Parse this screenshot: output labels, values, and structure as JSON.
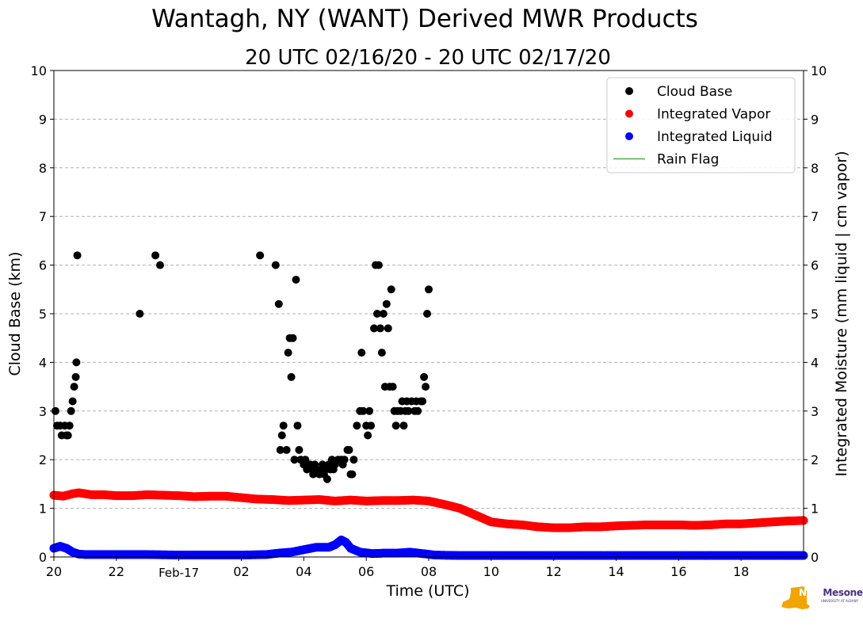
{
  "chart_data": {
    "type": "scatter",
    "title": "Wantagh, NY (WANT) Derived MWR Products",
    "subtitle": "20 UTC 02/16/20 - 20 UTC 02/17/20",
    "xlabel": "Time (UTC)",
    "ylabel": "Cloud Base (km)",
    "y2label": "Integrated Moisture (mm liquid | cm vapor)",
    "xlim": [
      20,
      44
    ],
    "ylim": [
      0,
      10
    ],
    "y2lim": [
      0,
      10
    ],
    "grid": true,
    "legend_position": "top-right",
    "x_ticks": [
      {
        "x": 20,
        "label": "20"
      },
      {
        "x": 22,
        "label": "22"
      },
      {
        "x": 24,
        "label": "Feb-17"
      },
      {
        "x": 26,
        "label": "02"
      },
      {
        "x": 28,
        "label": "04"
      },
      {
        "x": 30,
        "label": "06"
      },
      {
        "x": 32,
        "label": "08"
      },
      {
        "x": 34,
        "label": "10"
      },
      {
        "x": 36,
        "label": "12"
      },
      {
        "x": 38,
        "label": "14"
      },
      {
        "x": 40,
        "label": "16"
      },
      {
        "x": 42,
        "label": "18"
      }
    ],
    "y_ticks": [
      "0",
      "1",
      "2",
      "3",
      "4",
      "5",
      "6",
      "7",
      "8",
      "9",
      "10"
    ],
    "legend": [
      {
        "label": "Cloud Base",
        "kind": "dot",
        "color": "#000000"
      },
      {
        "label": "Integrated Vapor",
        "kind": "dot",
        "color": "#ff0000"
      },
      {
        "label": "Integrated Liquid",
        "kind": "dot",
        "color": "#0000ff"
      },
      {
        "label": "Rain Flag",
        "kind": "line",
        "color": "#4caf50"
      }
    ],
    "series": [
      {
        "name": "Cloud Base",
        "color": "#000000",
        "points": [
          [
            20.05,
            3.0
          ],
          [
            20.1,
            2.7
          ],
          [
            20.2,
            2.7
          ],
          [
            20.25,
            2.5
          ],
          [
            20.35,
            2.7
          ],
          [
            20.4,
            2.5
          ],
          [
            20.45,
            2.5
          ],
          [
            20.5,
            2.7
          ],
          [
            20.55,
            3.0
          ],
          [
            20.6,
            3.2
          ],
          [
            20.65,
            3.5
          ],
          [
            20.7,
            3.7
          ],
          [
            20.72,
            4.0
          ],
          [
            20.75,
            6.2
          ],
          [
            22.75,
            5.0
          ],
          [
            23.25,
            6.2
          ],
          [
            23.4,
            6.0
          ],
          [
            26.6,
            6.2
          ],
          [
            27.1,
            6.0
          ],
          [
            27.2,
            5.2
          ],
          [
            27.25,
            2.2
          ],
          [
            27.3,
            2.5
          ],
          [
            27.35,
            2.7
          ],
          [
            27.45,
            2.2
          ],
          [
            27.5,
            4.2
          ],
          [
            27.55,
            4.5
          ],
          [
            27.6,
            3.7
          ],
          [
            27.65,
            4.5
          ],
          [
            27.7,
            2.0
          ],
          [
            27.75,
            5.7
          ],
          [
            27.8,
            2.7
          ],
          [
            27.85,
            2.2
          ],
          [
            27.9,
            2.0
          ],
          [
            28.0,
            1.9
          ],
          [
            28.05,
            2.0
          ],
          [
            28.1,
            1.8
          ],
          [
            28.2,
            1.9
          ],
          [
            28.25,
            1.8
          ],
          [
            28.3,
            1.7
          ],
          [
            28.35,
            1.9
          ],
          [
            28.4,
            1.8
          ],
          [
            28.45,
            1.75
          ],
          [
            28.5,
            1.7
          ],
          [
            28.55,
            1.8
          ],
          [
            28.6,
            1.9
          ],
          [
            28.65,
            1.7
          ],
          [
            28.7,
            1.8
          ],
          [
            28.75,
            1.6
          ],
          [
            28.8,
            1.9
          ],
          [
            28.85,
            1.8
          ],
          [
            28.9,
            2.0
          ],
          [
            28.95,
            1.8
          ],
          [
            29.0,
            1.9
          ],
          [
            29.1,
            2.0
          ],
          [
            29.2,
            2.0
          ],
          [
            29.25,
            1.9
          ],
          [
            29.3,
            2.0
          ],
          [
            29.4,
            2.2
          ],
          [
            29.45,
            2.2
          ],
          [
            29.5,
            1.7
          ],
          [
            29.55,
            1.7
          ],
          [
            29.6,
            2.0
          ],
          [
            29.7,
            2.7
          ],
          [
            29.8,
            3.0
          ],
          [
            29.85,
            4.2
          ],
          [
            29.9,
            3.0
          ],
          [
            30.0,
            2.7
          ],
          [
            30.05,
            2.5
          ],
          [
            30.1,
            3.0
          ],
          [
            30.15,
            2.7
          ],
          [
            30.25,
            4.7
          ],
          [
            30.3,
            6.0
          ],
          [
            30.35,
            5.0
          ],
          [
            30.4,
            6.0
          ],
          [
            30.45,
            4.7
          ],
          [
            30.5,
            4.2
          ],
          [
            30.55,
            5.0
          ],
          [
            30.6,
            3.5
          ],
          [
            30.65,
            5.2
          ],
          [
            30.7,
            4.7
          ],
          [
            30.75,
            3.5
          ],
          [
            30.8,
            5.5
          ],
          [
            30.85,
            3.5
          ],
          [
            30.9,
            3.0
          ],
          [
            30.95,
            2.7
          ],
          [
            31.0,
            3.0
          ],
          [
            31.1,
            3.0
          ],
          [
            31.15,
            3.2
          ],
          [
            31.2,
            2.7
          ],
          [
            31.25,
            3.0
          ],
          [
            31.3,
            3.2
          ],
          [
            31.35,
            3.0
          ],
          [
            31.45,
            3.2
          ],
          [
            31.55,
            3.0
          ],
          [
            31.6,
            3.2
          ],
          [
            31.65,
            3.0
          ],
          [
            31.75,
            3.2
          ],
          [
            31.8,
            3.2
          ],
          [
            31.85,
            3.7
          ],
          [
            31.9,
            3.5
          ],
          [
            31.95,
            5.0
          ],
          [
            32.0,
            5.5
          ]
        ]
      },
      {
        "name": "Integrated Vapor",
        "color": "#ff0000",
        "points": [
          [
            20.0,
            1.27
          ],
          [
            20.3,
            1.25
          ],
          [
            20.6,
            1.3
          ],
          [
            20.8,
            1.32
          ],
          [
            21.2,
            1.28
          ],
          [
            21.6,
            1.28
          ],
          [
            22.0,
            1.26
          ],
          [
            22.5,
            1.26
          ],
          [
            23.0,
            1.28
          ],
          [
            23.5,
            1.27
          ],
          [
            24.0,
            1.26
          ],
          [
            24.5,
            1.24
          ],
          [
            25.0,
            1.25
          ],
          [
            25.5,
            1.25
          ],
          [
            26.0,
            1.22
          ],
          [
            26.5,
            1.19
          ],
          [
            27.0,
            1.18
          ],
          [
            27.5,
            1.16
          ],
          [
            28.0,
            1.17
          ],
          [
            28.5,
            1.18
          ],
          [
            29.0,
            1.15
          ],
          [
            29.5,
            1.17
          ],
          [
            30.0,
            1.15
          ],
          [
            30.5,
            1.16
          ],
          [
            31.0,
            1.16
          ],
          [
            31.5,
            1.17
          ],
          [
            32.0,
            1.15
          ],
          [
            32.5,
            1.08
          ],
          [
            33.0,
            1.0
          ],
          [
            33.5,
            0.86
          ],
          [
            34.0,
            0.72
          ],
          [
            34.5,
            0.68
          ],
          [
            35.0,
            0.66
          ],
          [
            35.5,
            0.62
          ],
          [
            36.0,
            0.6
          ],
          [
            36.5,
            0.6
          ],
          [
            37.0,
            0.62
          ],
          [
            37.5,
            0.62
          ],
          [
            38.0,
            0.64
          ],
          [
            38.5,
            0.65
          ],
          [
            39.0,
            0.66
          ],
          [
            39.5,
            0.66
          ],
          [
            40.0,
            0.66
          ],
          [
            40.5,
            0.65
          ],
          [
            41.0,
            0.66
          ],
          [
            41.5,
            0.68
          ],
          [
            42.0,
            0.68
          ],
          [
            42.5,
            0.7
          ],
          [
            43.0,
            0.72
          ],
          [
            43.5,
            0.74
          ],
          [
            44.0,
            0.75
          ]
        ]
      },
      {
        "name": "Integrated Liquid",
        "color": "#0000ff",
        "points": [
          [
            20.0,
            0.18
          ],
          [
            20.2,
            0.22
          ],
          [
            20.4,
            0.18
          ],
          [
            20.6,
            0.1
          ],
          [
            20.8,
            0.06
          ],
          [
            21.0,
            0.05
          ],
          [
            22.0,
            0.05
          ],
          [
            23.0,
            0.05
          ],
          [
            24.0,
            0.04
          ],
          [
            25.0,
            0.04
          ],
          [
            26.0,
            0.04
          ],
          [
            26.8,
            0.05
          ],
          [
            27.2,
            0.08
          ],
          [
            27.6,
            0.1
          ],
          [
            28.0,
            0.15
          ],
          [
            28.4,
            0.2
          ],
          [
            28.8,
            0.2
          ],
          [
            29.0,
            0.25
          ],
          [
            29.2,
            0.35
          ],
          [
            29.35,
            0.3
          ],
          [
            29.5,
            0.18
          ],
          [
            29.8,
            0.1
          ],
          [
            30.2,
            0.07
          ],
          [
            30.6,
            0.08
          ],
          [
            31.0,
            0.08
          ],
          [
            31.4,
            0.1
          ],
          [
            31.8,
            0.07
          ],
          [
            32.2,
            0.04
          ],
          [
            33.0,
            0.03
          ],
          [
            34.0,
            0.03
          ],
          [
            36.0,
            0.03
          ],
          [
            38.0,
            0.03
          ],
          [
            40.0,
            0.03
          ],
          [
            42.0,
            0.03
          ],
          [
            44.0,
            0.03
          ]
        ]
      }
    ]
  },
  "logo": {
    "nys": "NYS",
    "name": "Mesonet",
    "sub": "UNIVERSITY AT ALBANY"
  }
}
